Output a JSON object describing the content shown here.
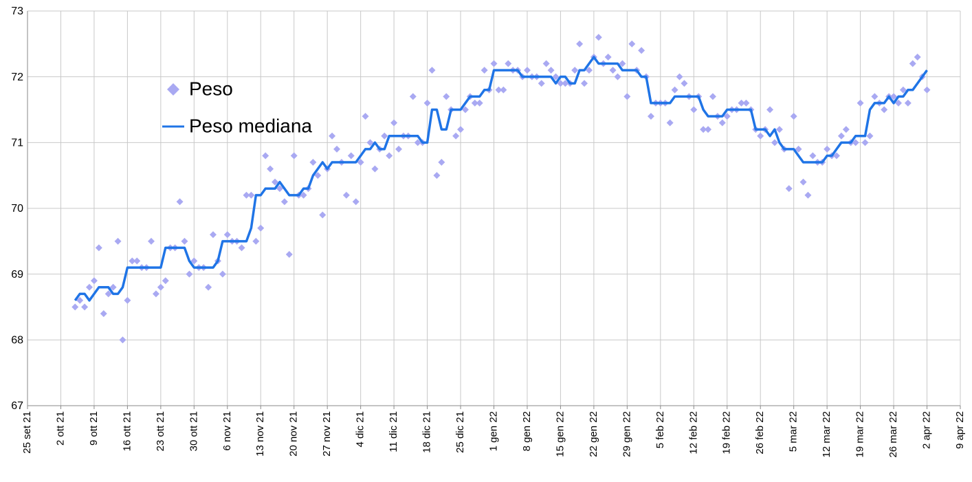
{
  "chart_data": {
    "type": "scatter",
    "x": [
      "2021-10-05",
      "2021-10-06",
      "2021-10-07",
      "2021-10-08",
      "2021-10-09",
      "2021-10-10",
      "2021-10-11",
      "2021-10-12",
      "2021-10-13",
      "2021-10-14",
      "2021-10-15",
      "2021-10-16",
      "2021-10-17",
      "2021-10-18",
      "2021-10-19",
      "2021-10-20",
      "2021-10-21",
      "2021-10-22",
      "2021-10-23",
      "2021-10-24",
      "2021-10-25",
      "2021-10-26",
      "2021-10-27",
      "2021-10-28",
      "2021-10-29",
      "2021-10-30",
      "2021-10-31",
      "2021-11-01",
      "2021-11-02",
      "2021-11-03",
      "2021-11-04",
      "2021-11-05",
      "2021-11-06",
      "2021-11-07",
      "2021-11-08",
      "2021-11-09",
      "2021-11-10",
      "2021-11-11",
      "2021-11-12",
      "2021-11-13",
      "2021-11-14",
      "2021-11-15",
      "2021-11-16",
      "2021-11-17",
      "2021-11-18",
      "2021-11-19",
      "2021-11-20",
      "2021-11-21",
      "2021-11-22",
      "2021-11-23",
      "2021-11-24",
      "2021-11-25",
      "2021-11-26",
      "2021-11-27",
      "2021-11-28",
      "2021-11-29",
      "2021-11-30",
      "2021-12-01",
      "2021-12-02",
      "2021-12-03",
      "2021-12-04",
      "2021-12-05",
      "2021-12-06",
      "2021-12-07",
      "2021-12-08",
      "2021-12-09",
      "2021-12-10",
      "2021-12-11",
      "2021-12-12",
      "2021-12-13",
      "2021-12-14",
      "2021-12-15",
      "2021-12-16",
      "2021-12-17",
      "2021-12-18",
      "2021-12-19",
      "2021-12-20",
      "2021-12-21",
      "2021-12-22",
      "2021-12-23",
      "2021-12-24",
      "2021-12-25",
      "2021-12-26",
      "2021-12-27",
      "2021-12-28",
      "2021-12-29",
      "2021-12-30",
      "2021-12-31",
      "2022-01-01",
      "2022-01-02",
      "2022-01-03",
      "2022-01-04",
      "2022-01-05",
      "2022-01-06",
      "2022-01-07",
      "2022-01-08",
      "2022-01-09",
      "2022-01-10",
      "2022-01-11",
      "2022-01-12",
      "2022-01-13",
      "2022-01-14",
      "2022-01-15",
      "2022-01-16",
      "2022-01-17",
      "2022-01-18",
      "2022-01-19",
      "2022-01-20",
      "2022-01-21",
      "2022-01-22",
      "2022-01-23",
      "2022-01-24",
      "2022-01-25",
      "2022-01-26",
      "2022-01-27",
      "2022-01-28",
      "2022-01-29",
      "2022-01-30",
      "2022-01-31",
      "2022-02-01",
      "2022-02-02",
      "2022-02-03",
      "2022-02-04",
      "2022-02-05",
      "2022-02-06",
      "2022-02-07",
      "2022-02-08",
      "2022-02-09",
      "2022-02-10",
      "2022-02-11",
      "2022-02-12",
      "2022-02-13",
      "2022-02-14",
      "2022-02-15",
      "2022-02-16",
      "2022-02-17",
      "2022-02-18",
      "2022-02-19",
      "2022-02-20",
      "2022-02-21",
      "2022-02-22",
      "2022-02-23",
      "2022-02-24",
      "2022-02-25",
      "2022-02-26",
      "2022-02-27",
      "2022-02-28",
      "2022-03-01",
      "2022-03-02",
      "2022-03-03",
      "2022-03-04",
      "2022-03-05",
      "2022-03-06",
      "2022-03-07",
      "2022-03-08",
      "2022-03-09",
      "2022-03-10",
      "2022-03-11",
      "2022-03-12",
      "2022-03-13",
      "2022-03-14",
      "2022-03-15",
      "2022-03-16",
      "2022-03-17",
      "2022-03-18",
      "2022-03-19",
      "2022-03-20",
      "2022-03-21",
      "2022-03-22",
      "2022-03-23",
      "2022-03-24",
      "2022-03-25",
      "2022-03-26",
      "2022-03-27",
      "2022-03-28",
      "2022-03-29",
      "2022-03-30",
      "2022-03-31",
      "2022-04-01",
      "2022-04-02"
    ],
    "series": [
      {
        "name": "Peso",
        "type": "scatter",
        "color": "#a9a9f2",
        "values": [
          68.5,
          68.6,
          68.5,
          68.8,
          68.9,
          69.4,
          68.4,
          68.7,
          68.8,
          69.5,
          68.0,
          68.6,
          69.2,
          69.2,
          69.1,
          69.1,
          69.5,
          68.7,
          68.8,
          68.9,
          69.4,
          69.4,
          70.1,
          69.5,
          69.0,
          69.2,
          69.1,
          69.1,
          68.8,
          69.6,
          69.2,
          69.0,
          69.6,
          69.5,
          69.5,
          69.4,
          70.2,
          70.2,
          69.5,
          69.7,
          70.8,
          70.6,
          70.4,
          70.3,
          70.1,
          69.3,
          70.8,
          70.2,
          70.2,
          70.3,
          70.7,
          70.5,
          69.9,
          70.6,
          71.1,
          70.9,
          70.7,
          70.2,
          70.8,
          70.1,
          70.7,
          71.4,
          71.0,
          70.6,
          70.9,
          71.1,
          70.8,
          71.3,
          70.9,
          71.1,
          71.1,
          71.7,
          71.0,
          71.0,
          71.6,
          72.1,
          70.5,
          70.7,
          71.7,
          71.5,
          71.1,
          71.2,
          71.5,
          71.7,
          71.6,
          71.6,
          72.1,
          71.8,
          72.2,
          71.8,
          71.8,
          72.2,
          72.1,
          72.1,
          72.0,
          72.1,
          72.0,
          72.0,
          71.9,
          72.2,
          72.1,
          72.0,
          71.9,
          71.9,
          71.9,
          72.1,
          72.5,
          71.9,
          72.1,
          72.3,
          72.6,
          72.2,
          72.3,
          72.1,
          72.0,
          72.2,
          71.7,
          72.5,
          72.1,
          72.4,
          72.0,
          71.4,
          71.6,
          71.6,
          71.6,
          71.3,
          71.8,
          72.0,
          71.9,
          71.7,
          71.5,
          71.7,
          71.2,
          71.2,
          71.7,
          71.4,
          71.3,
          71.4,
          71.5,
          71.5,
          71.6,
          71.6,
          71.5,
          71.2,
          71.1,
          71.2,
          71.5,
          71.0,
          71.2,
          70.9,
          70.3,
          71.4,
          70.9,
          70.4,
          70.2,
          70.8,
          70.7,
          70.7,
          70.9,
          70.8,
          70.8,
          71.1,
          71.2,
          71.0,
          71.0,
          71.6,
          71.0,
          71.1,
          71.7,
          71.6,
          71.5,
          71.7,
          71.7,
          71.6,
          71.8,
          71.6,
          72.2,
          72.3,
          72.0,
          71.8
        ]
      },
      {
        "name": "Peso mediana",
        "type": "line",
        "color": "#1f74e6",
        "values": [
          68.6,
          68.7,
          68.7,
          68.6,
          68.7,
          68.8,
          68.8,
          68.8,
          68.7,
          68.7,
          68.8,
          69.1,
          69.1,
          69.1,
          69.1,
          69.1,
          69.1,
          69.1,
          69.1,
          69.4,
          69.4,
          69.4,
          69.4,
          69.4,
          69.2,
          69.1,
          69.1,
          69.1,
          69.1,
          69.1,
          69.2,
          69.5,
          69.5,
          69.5,
          69.5,
          69.5,
          69.5,
          69.7,
          70.2,
          70.2,
          70.3,
          70.3,
          70.3,
          70.4,
          70.3,
          70.2,
          70.2,
          70.2,
          70.3,
          70.3,
          70.5,
          70.6,
          70.7,
          70.6,
          70.7,
          70.7,
          70.7,
          70.7,
          70.7,
          70.7,
          70.8,
          70.9,
          70.9,
          71.0,
          70.9,
          70.9,
          71.1,
          71.1,
          71.1,
          71.1,
          71.1,
          71.1,
          71.1,
          71.0,
          71.0,
          71.5,
          71.5,
          71.2,
          71.2,
          71.5,
          71.5,
          71.5,
          71.6,
          71.7,
          71.7,
          71.7,
          71.8,
          71.8,
          72.1,
          72.1,
          72.1,
          72.1,
          72.1,
          72.1,
          72.0,
          72.0,
          72.0,
          72.0,
          72.0,
          72.0,
          72.0,
          71.9,
          72.0,
          72.0,
          71.9,
          71.9,
          72.1,
          72.1,
          72.2,
          72.3,
          72.2,
          72.2,
          72.2,
          72.2,
          72.2,
          72.1,
          72.1,
          72.1,
          72.1,
          72.0,
          72.0,
          71.6,
          71.6,
          71.6,
          71.6,
          71.6,
          71.7,
          71.7,
          71.7,
          71.7,
          71.7,
          71.7,
          71.5,
          71.4,
          71.4,
          71.4,
          71.4,
          71.5,
          71.5,
          71.5,
          71.5,
          71.5,
          71.5,
          71.2,
          71.2,
          71.2,
          71.1,
          71.2,
          71.0,
          70.9,
          70.9,
          70.9,
          70.8,
          70.7,
          70.7,
          70.7,
          70.7,
          70.7,
          70.8,
          70.8,
          70.9,
          71.0,
          71.0,
          71.0,
          71.1,
          71.1,
          71.1,
          71.5,
          71.6,
          71.6,
          71.6,
          71.7,
          71.6,
          71.7,
          71.7,
          71.8,
          71.8,
          71.9,
          72.0,
          72.1
        ]
      }
    ],
    "xlim": [
      "2021-09-25",
      "2022-04-09"
    ],
    "xticks": [
      {
        "value": "2021-09-25",
        "label": "25 set 21"
      },
      {
        "value": "2021-10-02",
        "label": "2 ott 21"
      },
      {
        "value": "2021-10-09",
        "label": "9 ott 21"
      },
      {
        "value": "2021-10-16",
        "label": "16 ott 21"
      },
      {
        "value": "2021-10-23",
        "label": "23 ott 21"
      },
      {
        "value": "2021-10-30",
        "label": "30 ott 21"
      },
      {
        "value": "2021-11-06",
        "label": "6 nov 21"
      },
      {
        "value": "2021-11-13",
        "label": "13 nov 21"
      },
      {
        "value": "2021-11-20",
        "label": "20 nov 21"
      },
      {
        "value": "2021-11-27",
        "label": "27 nov 21"
      },
      {
        "value": "2021-12-04",
        "label": "4 dic 21"
      },
      {
        "value": "2021-12-11",
        "label": "11 dic 21"
      },
      {
        "value": "2021-12-18",
        "label": "18 dic 21"
      },
      {
        "value": "2021-12-25",
        "label": "25 dic 21"
      },
      {
        "value": "2022-01-01",
        "label": "1 gen 22"
      },
      {
        "value": "2022-01-08",
        "label": "8 gen 22"
      },
      {
        "value": "2022-01-15",
        "label": "15 gen 22"
      },
      {
        "value": "2022-01-22",
        "label": "22 gen 22"
      },
      {
        "value": "2022-01-29",
        "label": "29 gen 22"
      },
      {
        "value": "2022-02-05",
        "label": "5 feb 22"
      },
      {
        "value": "2022-02-12",
        "label": "12 feb 22"
      },
      {
        "value": "2022-02-19",
        "label": "19 feb 22"
      },
      {
        "value": "2022-02-26",
        "label": "26 feb 22"
      },
      {
        "value": "2022-03-05",
        "label": "5 mar 22"
      },
      {
        "value": "2022-03-12",
        "label": "12 mar 22"
      },
      {
        "value": "2022-03-19",
        "label": "19 mar 22"
      },
      {
        "value": "2022-03-26",
        "label": "26 mar 22"
      },
      {
        "value": "2022-04-02",
        "label": "2 apr 22"
      },
      {
        "value": "2022-04-09",
        "label": "9 apr 22"
      }
    ],
    "ylim": [
      67,
      73
    ],
    "yticks": [
      67,
      68,
      69,
      70,
      71,
      72,
      73
    ],
    "grid": true,
    "legend": "upper left"
  }
}
